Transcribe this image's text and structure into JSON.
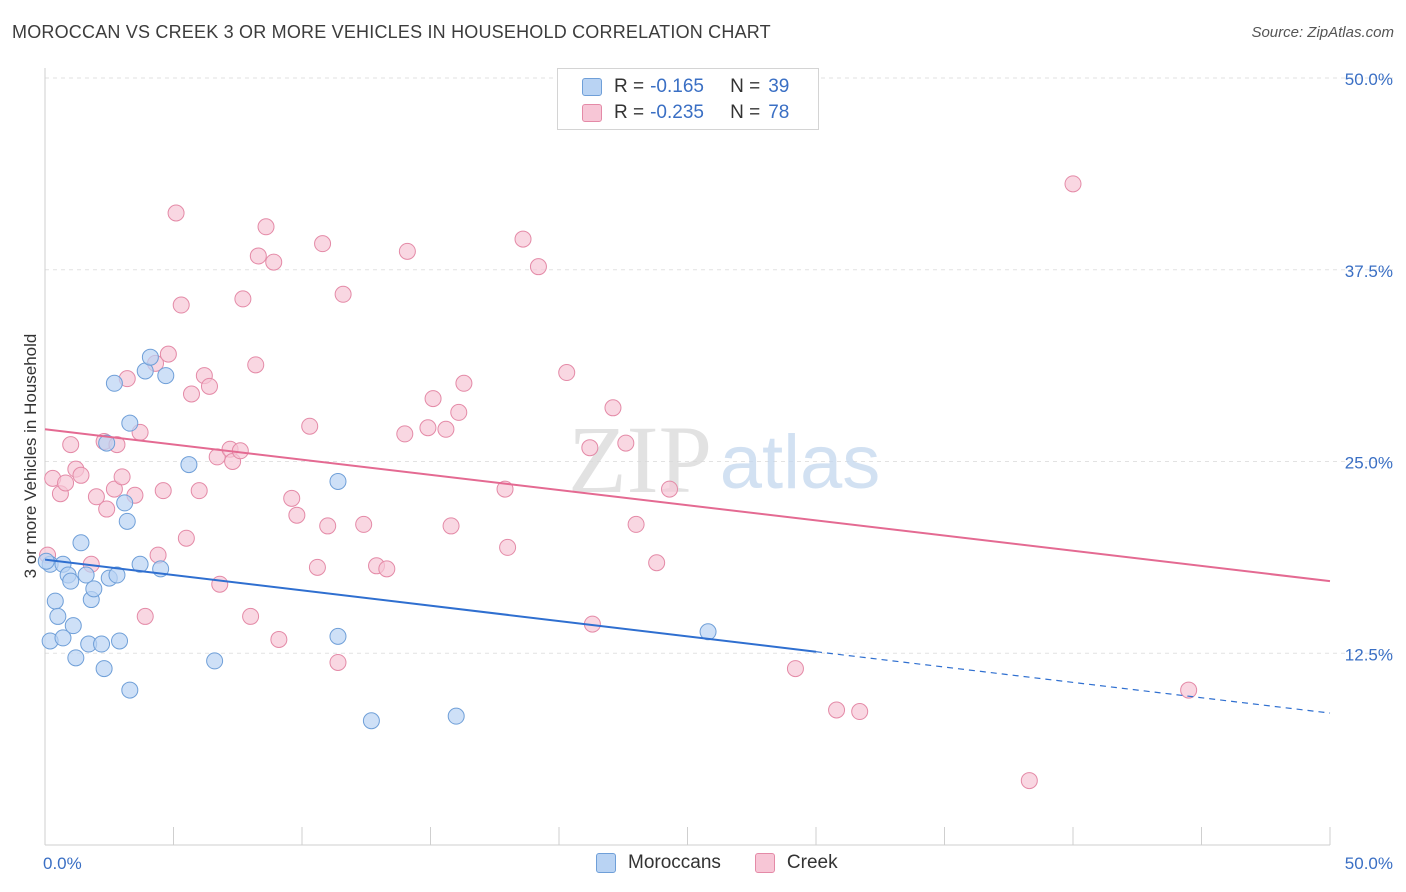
{
  "header": {
    "title": "MOROCCAN VS CREEK 3 OR MORE VEHICLES IN HOUSEHOLD CORRELATION CHART",
    "source": "Source: ZipAtlas.com"
  },
  "legend": {
    "rows": [
      {
        "r_label": "R =",
        "r_value": "-0.165",
        "n_label": "N =",
        "n_value": "39"
      },
      {
        "r_label": "R =",
        "r_value": "-0.235",
        "n_label": "N =",
        "n_value": "78"
      }
    ]
  },
  "bottom_legend": [
    "Moroccans",
    "Creek"
  ],
  "watermark": {
    "zip": "ZIP",
    "atlas": "atlas"
  },
  "colors": {
    "moroccans_fill": "#b9d3f3",
    "moroccans_stroke": "#6f9fd8",
    "moroccans_line": "#2f6fd0",
    "creek_fill": "#f7c6d6",
    "creek_stroke": "#e48aa7",
    "creek_line": "#e46a92",
    "tick_label": "#3a6fc4",
    "grid": "#e2e2e2"
  },
  "chart_data": {
    "type": "scatter",
    "title": "MOROCCAN VS CREEK 3 OR MORE VEHICLES IN HOUSEHOLD CORRELATION CHART",
    "xlabel": "",
    "ylabel": "3 or more Vehicles in Household",
    "xlim": [
      0,
      50
    ],
    "ylim": [
      0,
      50
    ],
    "x_tick_labels": [
      "0.0%",
      "50.0%"
    ],
    "y_ticks": [
      12.5,
      25.0,
      37.5,
      50.0
    ],
    "y_tick_labels": [
      "12.5%",
      "25.0%",
      "37.5%",
      "50.0%"
    ],
    "grid": true,
    "legend_position": "top-center",
    "series": [
      {
        "name": "Moroccans",
        "r": -0.165,
        "n": 39,
        "trend": {
          "x0": 0,
          "y0": 18.6,
          "x1": 30,
          "y1": 12.6,
          "dashed_to_x": 50,
          "dashed_to_y": 8.6
        },
        "points": [
          [
            0.2,
            18.3
          ],
          [
            0.2,
            13.3
          ],
          [
            0.4,
            15.9
          ],
          [
            0.5,
            14.9
          ],
          [
            0.7,
            18.3
          ],
          [
            0.7,
            13.5
          ],
          [
            0.9,
            17.6
          ],
          [
            1.0,
            17.2
          ],
          [
            1.1,
            14.3
          ],
          [
            1.2,
            12.2
          ],
          [
            1.4,
            19.7
          ],
          [
            1.6,
            17.6
          ],
          [
            1.7,
            13.1
          ],
          [
            1.8,
            16.0
          ],
          [
            1.9,
            16.7
          ],
          [
            2.2,
            13.1
          ],
          [
            2.3,
            11.5
          ],
          [
            2.4,
            26.2
          ],
          [
            2.5,
            17.4
          ],
          [
            2.7,
            30.1
          ],
          [
            2.8,
            17.6
          ],
          [
            2.9,
            13.3
          ],
          [
            3.1,
            22.3
          ],
          [
            3.2,
            21.1
          ],
          [
            3.3,
            10.1
          ],
          [
            3.3,
            27.5
          ],
          [
            3.7,
            18.3
          ],
          [
            3.9,
            30.9
          ],
          [
            4.1,
            31.8
          ],
          [
            4.5,
            18.0
          ],
          [
            4.7,
            30.6
          ],
          [
            5.6,
            24.8
          ],
          [
            6.6,
            12.0
          ],
          [
            11.4,
            23.7
          ],
          [
            11.4,
            13.6
          ],
          [
            12.7,
            8.1
          ],
          [
            16.0,
            8.4
          ],
          [
            25.8,
            13.9
          ],
          [
            0.05,
            18.5
          ]
        ]
      },
      {
        "name": "Creek",
        "r": -0.235,
        "n": 78,
        "trend": {
          "x0": 0,
          "y0": 27.1,
          "x1": 50,
          "y1": 17.2
        },
        "points": [
          [
            0.1,
            18.9
          ],
          [
            0.3,
            23.9
          ],
          [
            0.6,
            22.9
          ],
          [
            0.8,
            23.6
          ],
          [
            1.0,
            26.1
          ],
          [
            1.2,
            24.5
          ],
          [
            1.4,
            24.1
          ],
          [
            1.8,
            18.3
          ],
          [
            2.0,
            22.7
          ],
          [
            2.3,
            26.3
          ],
          [
            2.4,
            21.9
          ],
          [
            2.7,
            23.2
          ],
          [
            2.8,
            26.1
          ],
          [
            3.0,
            24.0
          ],
          [
            3.2,
            30.4
          ],
          [
            3.5,
            22.8
          ],
          [
            3.7,
            26.9
          ],
          [
            3.9,
            14.9
          ],
          [
            4.3,
            31.4
          ],
          [
            4.4,
            18.9
          ],
          [
            4.6,
            23.1
          ],
          [
            4.8,
            32.0
          ],
          [
            5.1,
            41.2
          ],
          [
            5.3,
            35.2
          ],
          [
            5.5,
            20.0
          ],
          [
            5.7,
            29.4
          ],
          [
            6.0,
            23.1
          ],
          [
            6.2,
            30.6
          ],
          [
            6.4,
            29.9
          ],
          [
            6.7,
            25.3
          ],
          [
            6.8,
            17.0
          ],
          [
            7.2,
            25.8
          ],
          [
            7.3,
            25.0
          ],
          [
            7.6,
            25.7
          ],
          [
            7.7,
            35.6
          ],
          [
            8.0,
            14.9
          ],
          [
            8.2,
            31.3
          ],
          [
            8.3,
            38.4
          ],
          [
            8.6,
            40.3
          ],
          [
            8.9,
            38.0
          ],
          [
            9.1,
            13.4
          ],
          [
            9.6,
            22.6
          ],
          [
            9.8,
            21.5
          ],
          [
            10.3,
            27.3
          ],
          [
            10.6,
            18.1
          ],
          [
            10.8,
            39.2
          ],
          [
            11.0,
            20.8
          ],
          [
            11.4,
            11.9
          ],
          [
            11.6,
            35.9
          ],
          [
            12.4,
            20.9
          ],
          [
            12.9,
            18.2
          ],
          [
            13.3,
            18.0
          ],
          [
            14.0,
            26.8
          ],
          [
            14.1,
            38.7
          ],
          [
            14.9,
            27.2
          ],
          [
            15.1,
            29.1
          ],
          [
            15.6,
            27.1
          ],
          [
            15.8,
            20.8
          ],
          [
            16.1,
            28.2
          ],
          [
            16.3,
            30.1
          ],
          [
            17.9,
            23.2
          ],
          [
            18.0,
            19.4
          ],
          [
            18.6,
            39.5
          ],
          [
            19.2,
            37.7
          ],
          [
            20.3,
            30.8
          ],
          [
            21.2,
            25.9
          ],
          [
            21.3,
            14.4
          ],
          [
            22.1,
            28.5
          ],
          [
            22.6,
            26.2
          ],
          [
            23.0,
            20.9
          ],
          [
            23.8,
            18.4
          ],
          [
            24.3,
            23.2
          ],
          [
            29.2,
            11.5
          ],
          [
            30.8,
            8.8
          ],
          [
            31.7,
            8.7
          ],
          [
            38.3,
            4.2
          ],
          [
            40.0,
            43.1
          ],
          [
            44.5,
            10.1
          ]
        ]
      }
    ]
  }
}
